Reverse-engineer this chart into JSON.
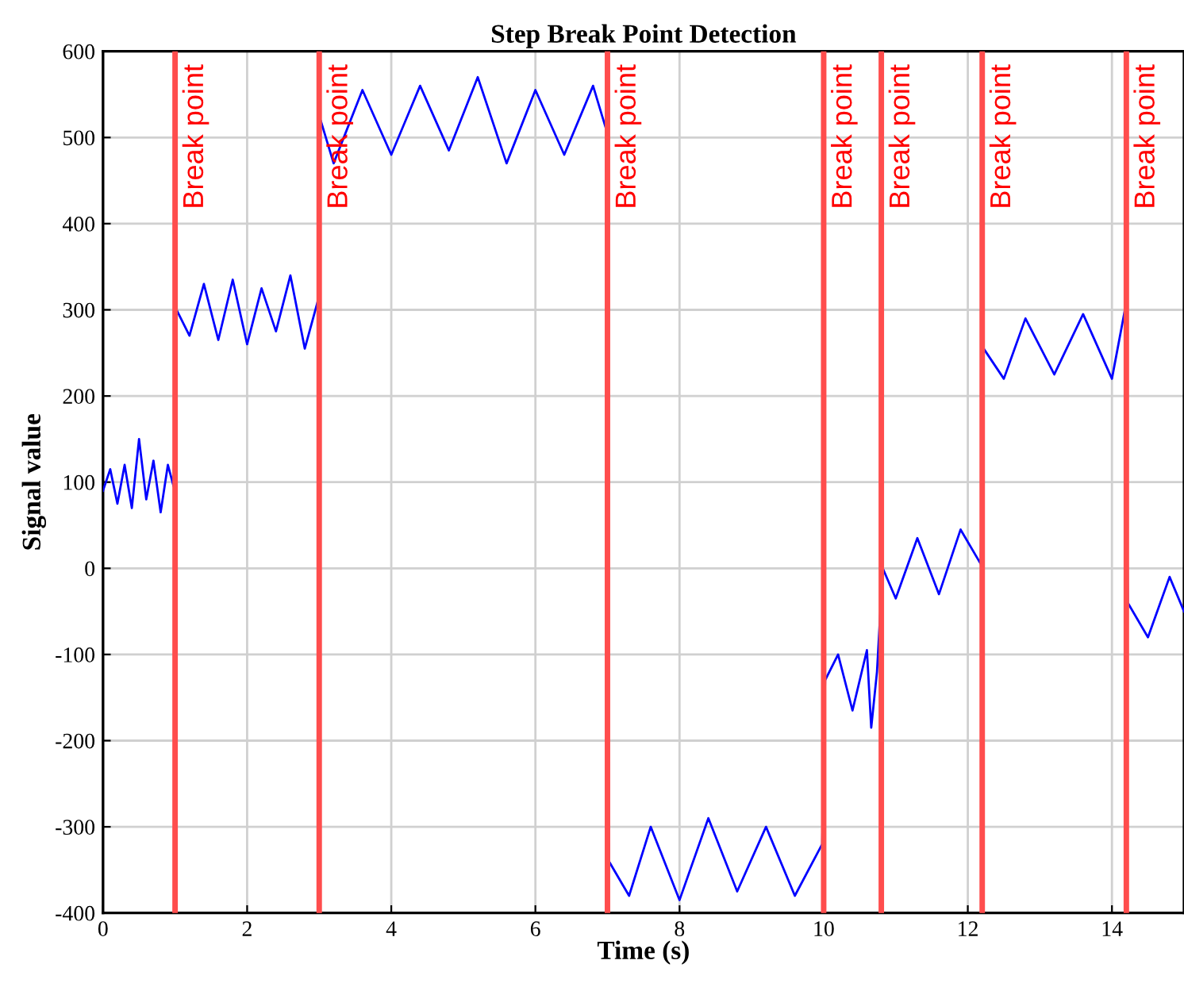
{
  "chart_data": {
    "type": "line",
    "title": "Step Break Point Detection",
    "xlabel": "Time (s)",
    "ylabel": "Signal value",
    "series": [
      {
        "color": "#0000ff",
        "x": [
          0,
          0.1,
          0.2,
          0.3,
          0.4,
          0.5,
          0.6,
          0.7,
          0.8,
          0.9,
          0.98,
          1.02,
          1.2,
          1.4,
          1.6,
          1.8,
          2.0,
          2.2,
          2.4,
          2.6,
          2.8,
          2.98,
          3.02,
          3.2,
          3.6,
          4.0,
          4.4,
          4.8,
          5.2,
          5.6,
          6.0,
          6.4,
          6.8,
          6.98,
          7.02,
          7.3,
          7.6,
          8.0,
          8.4,
          8.8,
          9.2,
          9.6,
          9.98,
          10.02,
          10.2,
          10.4,
          10.6,
          10.66,
          10.74,
          10.82,
          11.0,
          11.3,
          11.6,
          11.9,
          12.18,
          12.22,
          12.5,
          12.8,
          13.2,
          13.6,
          14.0,
          14.18,
          14.22,
          14.5,
          14.8,
          15
        ],
        "values": [
          90,
          115,
          75,
          120,
          70,
          150,
          80,
          125,
          65,
          120,
          95,
          300,
          270,
          330,
          265,
          335,
          260,
          325,
          275,
          340,
          255,
          310,
          520,
          470,
          555,
          480,
          560,
          485,
          570,
          470,
          555,
          480,
          560,
          510,
          -340,
          -380,
          -300,
          -385,
          -290,
          -375,
          -300,
          -380,
          -320,
          -130,
          -100,
          -165,
          -95,
          -185,
          -120,
          0,
          -35,
          35,
          -30,
          45,
          5,
          255,
          220,
          290,
          225,
          295,
          220,
          300,
          -40,
          -80,
          -10,
          -50
        ]
      }
    ],
    "xlim": [
      0,
      15
    ],
    "xticks": [
      0,
      2,
      4,
      6,
      8,
      10,
      12,
      14
    ],
    "ylim": [
      -400,
      600
    ],
    "yticks": [
      -400,
      -300,
      -200,
      -100,
      0,
      100,
      200,
      300,
      400,
      500,
      600
    ],
    "grid": true,
    "line_style": "solid",
    "marker": "none",
    "ref_lines": [
      {
        "axis": "x",
        "value": 1,
        "label": "Break point",
        "color": "#ff4d4d"
      },
      {
        "axis": "x",
        "value": 3,
        "label": "Break point",
        "color": "#ff4d4d"
      },
      {
        "axis": "x",
        "value": 7,
        "label": "Break point",
        "color": "#ff4d4d"
      },
      {
        "axis": "x",
        "value": 10,
        "label": "Break point",
        "color": "#ff4d4d"
      },
      {
        "axis": "x",
        "value": 10.8,
        "label": "Break point",
        "color": "#ff4d4d"
      },
      {
        "axis": "x",
        "value": 12.2,
        "label": "Break point",
        "color": "#ff4d4d"
      },
      {
        "axis": "x",
        "value": 14.2,
        "label": "Break point",
        "color": "#ff4d4d"
      }
    ]
  }
}
